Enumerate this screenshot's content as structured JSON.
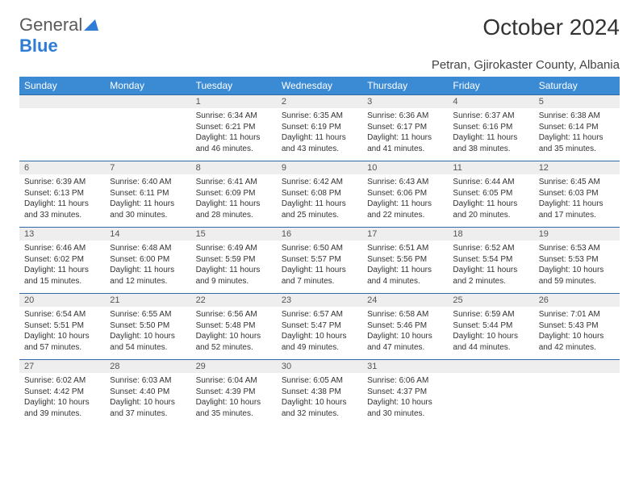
{
  "logo": {
    "part1": "General",
    "part2": "Blue"
  },
  "title": "October 2024",
  "location": "Petran, Gjirokaster County, Albania",
  "colors": {
    "header_bg": "#3a8ad4",
    "header_text": "#ffffff",
    "daynum_bg": "#eeeeee",
    "row_divider": "#2e6aa8",
    "logo_blue": "#2e7cd6",
    "text": "#333333"
  },
  "dayNames": [
    "Sunday",
    "Monday",
    "Tuesday",
    "Wednesday",
    "Thursday",
    "Friday",
    "Saturday"
  ],
  "weeks": [
    [
      {
        "n": "",
        "sr": "",
        "ss": "",
        "dl": ""
      },
      {
        "n": "",
        "sr": "",
        "ss": "",
        "dl": ""
      },
      {
        "n": "1",
        "sr": "Sunrise: 6:34 AM",
        "ss": "Sunset: 6:21 PM",
        "dl": "Daylight: 11 hours and 46 minutes."
      },
      {
        "n": "2",
        "sr": "Sunrise: 6:35 AM",
        "ss": "Sunset: 6:19 PM",
        "dl": "Daylight: 11 hours and 43 minutes."
      },
      {
        "n": "3",
        "sr": "Sunrise: 6:36 AM",
        "ss": "Sunset: 6:17 PM",
        "dl": "Daylight: 11 hours and 41 minutes."
      },
      {
        "n": "4",
        "sr": "Sunrise: 6:37 AM",
        "ss": "Sunset: 6:16 PM",
        "dl": "Daylight: 11 hours and 38 minutes."
      },
      {
        "n": "5",
        "sr": "Sunrise: 6:38 AM",
        "ss": "Sunset: 6:14 PM",
        "dl": "Daylight: 11 hours and 35 minutes."
      }
    ],
    [
      {
        "n": "6",
        "sr": "Sunrise: 6:39 AM",
        "ss": "Sunset: 6:13 PM",
        "dl": "Daylight: 11 hours and 33 minutes."
      },
      {
        "n": "7",
        "sr": "Sunrise: 6:40 AM",
        "ss": "Sunset: 6:11 PM",
        "dl": "Daylight: 11 hours and 30 minutes."
      },
      {
        "n": "8",
        "sr": "Sunrise: 6:41 AM",
        "ss": "Sunset: 6:09 PM",
        "dl": "Daylight: 11 hours and 28 minutes."
      },
      {
        "n": "9",
        "sr": "Sunrise: 6:42 AM",
        "ss": "Sunset: 6:08 PM",
        "dl": "Daylight: 11 hours and 25 minutes."
      },
      {
        "n": "10",
        "sr": "Sunrise: 6:43 AM",
        "ss": "Sunset: 6:06 PM",
        "dl": "Daylight: 11 hours and 22 minutes."
      },
      {
        "n": "11",
        "sr": "Sunrise: 6:44 AM",
        "ss": "Sunset: 6:05 PM",
        "dl": "Daylight: 11 hours and 20 minutes."
      },
      {
        "n": "12",
        "sr": "Sunrise: 6:45 AM",
        "ss": "Sunset: 6:03 PM",
        "dl": "Daylight: 11 hours and 17 minutes."
      }
    ],
    [
      {
        "n": "13",
        "sr": "Sunrise: 6:46 AM",
        "ss": "Sunset: 6:02 PM",
        "dl": "Daylight: 11 hours and 15 minutes."
      },
      {
        "n": "14",
        "sr": "Sunrise: 6:48 AM",
        "ss": "Sunset: 6:00 PM",
        "dl": "Daylight: 11 hours and 12 minutes."
      },
      {
        "n": "15",
        "sr": "Sunrise: 6:49 AM",
        "ss": "Sunset: 5:59 PM",
        "dl": "Daylight: 11 hours and 9 minutes."
      },
      {
        "n": "16",
        "sr": "Sunrise: 6:50 AM",
        "ss": "Sunset: 5:57 PM",
        "dl": "Daylight: 11 hours and 7 minutes."
      },
      {
        "n": "17",
        "sr": "Sunrise: 6:51 AM",
        "ss": "Sunset: 5:56 PM",
        "dl": "Daylight: 11 hours and 4 minutes."
      },
      {
        "n": "18",
        "sr": "Sunrise: 6:52 AM",
        "ss": "Sunset: 5:54 PM",
        "dl": "Daylight: 11 hours and 2 minutes."
      },
      {
        "n": "19",
        "sr": "Sunrise: 6:53 AM",
        "ss": "Sunset: 5:53 PM",
        "dl": "Daylight: 10 hours and 59 minutes."
      }
    ],
    [
      {
        "n": "20",
        "sr": "Sunrise: 6:54 AM",
        "ss": "Sunset: 5:51 PM",
        "dl": "Daylight: 10 hours and 57 minutes."
      },
      {
        "n": "21",
        "sr": "Sunrise: 6:55 AM",
        "ss": "Sunset: 5:50 PM",
        "dl": "Daylight: 10 hours and 54 minutes."
      },
      {
        "n": "22",
        "sr": "Sunrise: 6:56 AM",
        "ss": "Sunset: 5:48 PM",
        "dl": "Daylight: 10 hours and 52 minutes."
      },
      {
        "n": "23",
        "sr": "Sunrise: 6:57 AM",
        "ss": "Sunset: 5:47 PM",
        "dl": "Daylight: 10 hours and 49 minutes."
      },
      {
        "n": "24",
        "sr": "Sunrise: 6:58 AM",
        "ss": "Sunset: 5:46 PM",
        "dl": "Daylight: 10 hours and 47 minutes."
      },
      {
        "n": "25",
        "sr": "Sunrise: 6:59 AM",
        "ss": "Sunset: 5:44 PM",
        "dl": "Daylight: 10 hours and 44 minutes."
      },
      {
        "n": "26",
        "sr": "Sunrise: 7:01 AM",
        "ss": "Sunset: 5:43 PM",
        "dl": "Daylight: 10 hours and 42 minutes."
      }
    ],
    [
      {
        "n": "27",
        "sr": "Sunrise: 6:02 AM",
        "ss": "Sunset: 4:42 PM",
        "dl": "Daylight: 10 hours and 39 minutes."
      },
      {
        "n": "28",
        "sr": "Sunrise: 6:03 AM",
        "ss": "Sunset: 4:40 PM",
        "dl": "Daylight: 10 hours and 37 minutes."
      },
      {
        "n": "29",
        "sr": "Sunrise: 6:04 AM",
        "ss": "Sunset: 4:39 PM",
        "dl": "Daylight: 10 hours and 35 minutes."
      },
      {
        "n": "30",
        "sr": "Sunrise: 6:05 AM",
        "ss": "Sunset: 4:38 PM",
        "dl": "Daylight: 10 hours and 32 minutes."
      },
      {
        "n": "31",
        "sr": "Sunrise: 6:06 AM",
        "ss": "Sunset: 4:37 PM",
        "dl": "Daylight: 10 hours and 30 minutes."
      },
      {
        "n": "",
        "sr": "",
        "ss": "",
        "dl": ""
      },
      {
        "n": "",
        "sr": "",
        "ss": "",
        "dl": ""
      }
    ]
  ]
}
